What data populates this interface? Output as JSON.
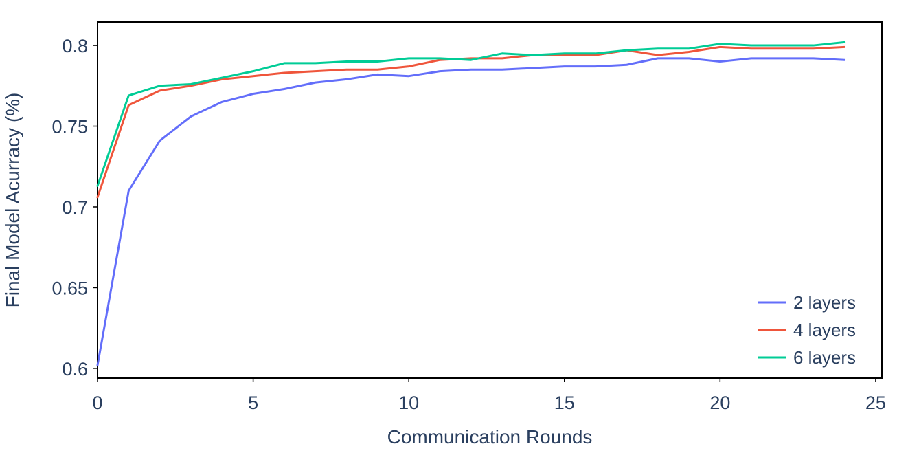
{
  "chart_data": {
    "type": "line",
    "xlabel": "Communication Rounds",
    "ylabel": "Final Model Acurracy (%)",
    "xlim": [
      0,
      25.2
    ],
    "ylim": [
      0.594,
      0.8145
    ],
    "xticks": [
      0,
      5,
      10,
      15,
      20,
      25
    ],
    "xtick_labels": [
      "0",
      "5",
      "10",
      "15",
      "20",
      "25"
    ],
    "yticks": [
      0.6,
      0.65,
      0.7,
      0.75,
      0.8
    ],
    "ytick_labels": [
      "0.6",
      "0.65",
      "0.7",
      "0.75",
      "0.8"
    ],
    "grid": false,
    "legend_position": "bottom-right",
    "x": [
      0,
      1,
      2,
      3,
      4,
      5,
      6,
      7,
      8,
      9,
      10,
      11,
      12,
      13,
      14,
      15,
      16,
      17,
      18,
      19,
      20,
      21,
      22,
      23,
      24
    ],
    "series": [
      {
        "name": "2 layers",
        "color": "#636efa",
        "values": [
          0.602,
          0.71,
          0.741,
          0.756,
          0.765,
          0.77,
          0.773,
          0.777,
          0.779,
          0.782,
          0.781,
          0.784,
          0.785,
          0.785,
          0.786,
          0.787,
          0.787,
          0.788,
          0.792,
          0.792,
          0.79,
          0.792,
          0.792,
          0.792,
          0.791
        ]
      },
      {
        "name": "4 layers",
        "color": "#ef553b",
        "values": [
          0.706,
          0.763,
          0.772,
          0.775,
          0.779,
          0.781,
          0.783,
          0.784,
          0.785,
          0.785,
          0.787,
          0.791,
          0.792,
          0.792,
          0.794,
          0.794,
          0.794,
          0.797,
          0.794,
          0.796,
          0.799,
          0.798,
          0.798,
          0.798,
          0.799
        ]
      },
      {
        "name": "6 layers",
        "color": "#00cc96",
        "values": [
          0.713,
          0.769,
          0.775,
          0.776,
          0.78,
          0.784,
          0.789,
          0.789,
          0.79,
          0.79,
          0.792,
          0.792,
          0.791,
          0.795,
          0.794,
          0.795,
          0.795,
          0.797,
          0.798,
          0.798,
          0.801,
          0.8,
          0.8,
          0.8,
          0.802
        ]
      }
    ]
  }
}
